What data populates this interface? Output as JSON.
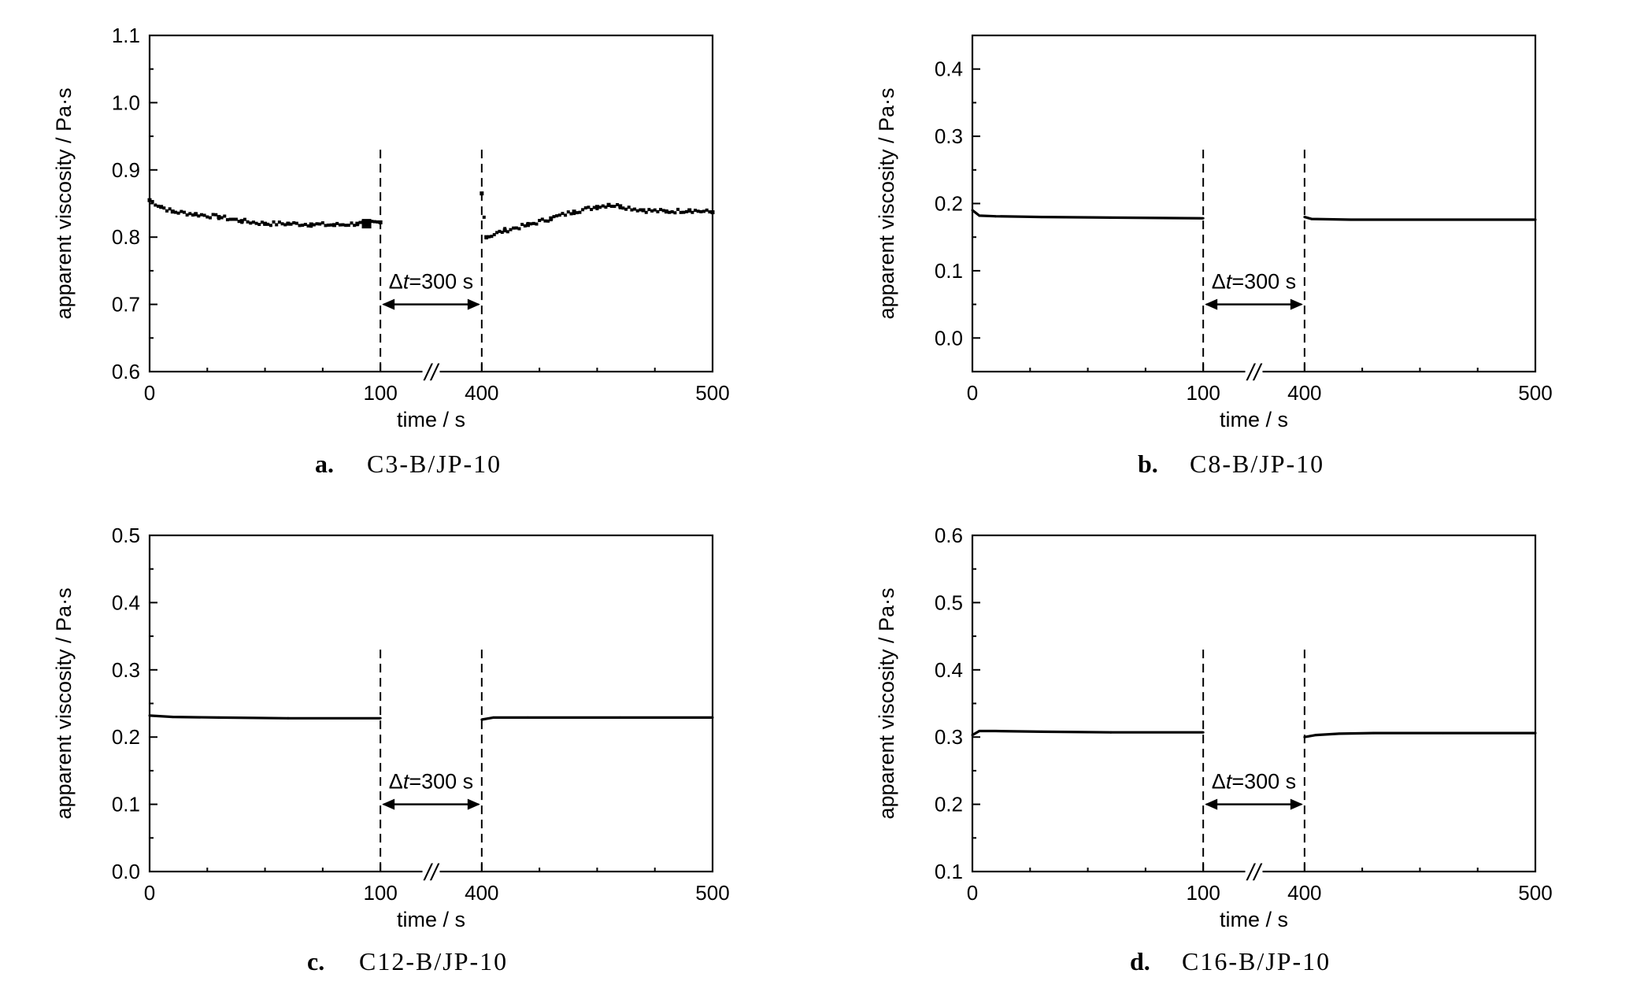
{
  "figure": {
    "x_break_symbol": "//",
    "annotation_delta": "Δ",
    "annotation_t": "t",
    "annotation_rest": "=300 s"
  },
  "chart_data": [
    {
      "type": "line",
      "caption_letter": "a.",
      "caption_name": "C3-B/JP-10",
      "xlabel": "time / s",
      "ylabel": "apparent viscosity / Pa·s",
      "x_segments": [
        [
          0,
          100
        ],
        [
          400,
          500
        ]
      ],
      "x_ticks": [
        "0",
        "100",
        "400",
        "500"
      ],
      "ylim": [
        0.6,
        1.1
      ],
      "y_ticks": [
        "0.6",
        "0.7",
        "0.8",
        "0.9",
        "1.0",
        "1.1"
      ],
      "annotation": "Δt=300 s",
      "series": [
        {
          "style": "noisy-markers",
          "x": [
            0,
            5,
            10,
            20,
            30,
            40,
            50,
            60,
            70,
            80,
            90,
            100,
            400,
            402,
            410,
            420,
            430,
            440,
            450,
            455,
            460,
            470,
            480,
            490,
            500
          ],
          "y": [
            0.855,
            0.845,
            0.838,
            0.834,
            0.83,
            0.824,
            0.82,
            0.82,
            0.819,
            0.818,
            0.82,
            0.822,
            0.865,
            0.8,
            0.81,
            0.818,
            0.828,
            0.838,
            0.845,
            0.848,
            0.846,
            0.84,
            0.838,
            0.84,
            0.837
          ]
        }
      ]
    },
    {
      "type": "line",
      "caption_letter": "b.",
      "caption_name": "C8-B/JP-10",
      "xlabel": "time / s",
      "ylabel": "apparent viscosity / Pa·s",
      "x_segments": [
        [
          0,
          100
        ],
        [
          400,
          500
        ]
      ],
      "x_ticks": [
        "0",
        "100",
        "400",
        "500"
      ],
      "ylim": [
        -0.05,
        0.45
      ],
      "y_ticks": [
        "0.0",
        "0.1",
        "0.2",
        "0.3",
        "0.4"
      ],
      "annotation": "Δt=300 s",
      "series": [
        {
          "style": "line",
          "x": [
            0,
            3,
            10,
            30,
            60,
            100,
            400,
            403,
            420,
            460,
            500
          ],
          "y": [
            0.19,
            0.182,
            0.181,
            0.18,
            0.179,
            0.178,
            0.18,
            0.177,
            0.176,
            0.176,
            0.176
          ]
        }
      ]
    },
    {
      "type": "line",
      "caption_letter": "c.",
      "caption_name": "C12-B/JP-10",
      "xlabel": "time / s",
      "ylabel": "apparent viscosity / Pa·s",
      "x_segments": [
        [
          0,
          100
        ],
        [
          400,
          500
        ]
      ],
      "x_ticks": [
        "0",
        "100",
        "400",
        "500"
      ],
      "ylim": [
        0.0,
        0.5
      ],
      "y_ticks": [
        "0.0",
        "0.1",
        "0.2",
        "0.3",
        "0.4",
        "0.5"
      ],
      "annotation": "Δt=300 s",
      "series": [
        {
          "style": "line",
          "x": [
            0,
            10,
            30,
            60,
            100,
            400,
            405,
            420,
            460,
            500
          ],
          "y": [
            0.232,
            0.23,
            0.229,
            0.228,
            0.228,
            0.226,
            0.229,
            0.229,
            0.229,
            0.229
          ]
        }
      ]
    },
    {
      "type": "line",
      "caption_letter": "d.",
      "caption_name": "C16-B/JP-10",
      "xlabel": "time / s",
      "ylabel": "apparent viscosity / Pa·s",
      "x_segments": [
        [
          0,
          100
        ],
        [
          400,
          500
        ]
      ],
      "x_ticks": [
        "0",
        "100",
        "400",
        "500"
      ],
      "ylim": [
        0.1,
        0.6
      ],
      "y_ticks": [
        "0.1",
        "0.2",
        "0.3",
        "0.4",
        "0.5",
        "0.6"
      ],
      "annotation": "Δt=300 s",
      "series": [
        {
          "style": "line",
          "x": [
            0,
            3,
            10,
            30,
            60,
            100,
            400,
            405,
            415,
            430,
            460,
            500
          ],
          "y": [
            0.303,
            0.309,
            0.309,
            0.308,
            0.307,
            0.307,
            0.3,
            0.303,
            0.305,
            0.306,
            0.306,
            0.306
          ]
        }
      ]
    }
  ]
}
